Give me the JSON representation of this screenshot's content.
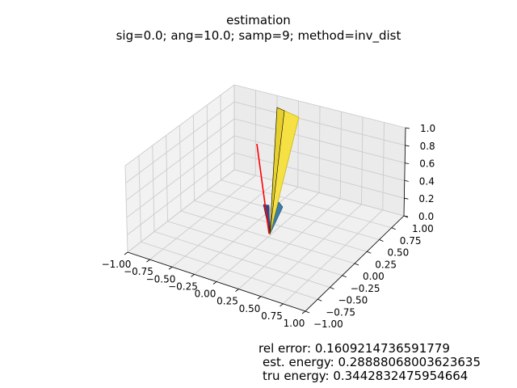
{
  "chart_data": {
    "type": "3d-quiver",
    "title": "estimation",
    "subtitle": "sig=0.0; ang=10.0; samp=9; method=inv_dist",
    "xlim": [
      -1.0,
      1.0
    ],
    "ylim": [
      -1.0,
      1.0
    ],
    "zlim": [
      0.0,
      1.0
    ],
    "x_ticks": [
      "−1.00",
      "−0.75",
      "−0.50",
      "−0.25",
      "0.00",
      "0.25",
      "0.50",
      "0.75",
      "1.00"
    ],
    "y_ticks": [
      "−1.00",
      "−0.75",
      "−0.50",
      "−0.25",
      "0.00",
      "0.25",
      "0.50",
      "0.75",
      "1.00"
    ],
    "z_ticks": [
      "0.0",
      "0.2",
      "0.4",
      "0.6",
      "0.8",
      "1.0"
    ],
    "grid": true,
    "colors": {
      "estimate_main": "#f5e03a",
      "estimate_dark": "#2f4a8a",
      "estimate_mid": "#3c7fa6",
      "true_vector": "#ff0000",
      "pane": "#f2f2f2",
      "grid": "#d0d0d0"
    }
  },
  "stats": {
    "rel_error": "rel error: 0.1609214736591779",
    "est_energy": "est. energy: 0.28888068003623635",
    "tru_energy": "tru energy: 0.3442832475954664"
  }
}
